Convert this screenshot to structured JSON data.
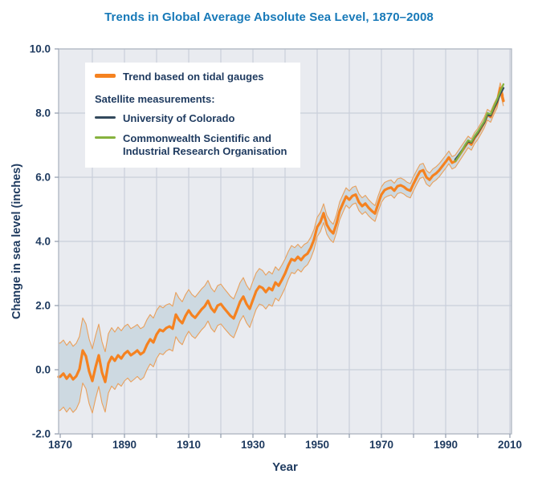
{
  "title": "Trends in Global Average Absolute Sea Level, 1870–2008",
  "colors": {
    "title_blue": "#1779b8",
    "text_navy": "#1e3a5f",
    "gauge_orange": "#f58220",
    "band_fill": "#cdd9e1",
    "band_edge": "#e9a05c",
    "colorado_navy": "#33495c",
    "csiro_green": "#86b23e",
    "plot_bg": "#e9ebf0",
    "gridline": "#c9cfda",
    "frame": "#b2b9c4",
    "tick": "#8e99ab"
  },
  "legend": {
    "tidal_label": "Trend based on tidal gauges",
    "satellite_header": "Satellite measurements:",
    "colorado_label": "University of Colorado",
    "csiro_label": "Commonwealth Scientific and Industrial Research Organisation"
  },
  "chart_data": {
    "type": "line",
    "title": "Trends in Global Average Absolute Sea Level, 1870–2008",
    "xlabel": "Year",
    "ylabel": "Change in sea level (inches)",
    "xlim": [
      1869.5,
      2010.5
    ],
    "ylim": [
      -2,
      10
    ],
    "x_ticks_labeled": [
      1870,
      1890,
      1910,
      1930,
      1950,
      1970,
      1990,
      2010
    ],
    "x_gridline_interval": 10,
    "y_ticks": [
      10,
      8,
      6,
      4,
      2,
      0,
      -2
    ],
    "grid": true,
    "legend_position": "top-left-inside",
    "series": [
      {
        "name": "Trend based on tidal gauges",
        "color": "#f58220",
        "width": 3.2,
        "x_start": 1870,
        "extend_to_left_edge": true,
        "values": [
          -0.22,
          -0.12,
          -0.28,
          -0.15,
          -0.3,
          -0.2,
          0.02,
          0.6,
          0.42,
          -0.05,
          -0.35,
          0.08,
          0.45,
          -0.08,
          -0.38,
          0.2,
          0.4,
          0.28,
          0.45,
          0.35,
          0.5,
          0.58,
          0.45,
          0.52,
          0.6,
          0.48,
          0.55,
          0.78,
          0.95,
          0.85,
          1.1,
          1.25,
          1.2,
          1.3,
          1.35,
          1.28,
          1.72,
          1.55,
          1.45,
          1.68,
          1.85,
          1.7,
          1.62,
          1.75,
          1.88,
          1.98,
          2.15,
          1.92,
          1.8,
          2.0,
          2.05,
          1.92,
          1.8,
          1.68,
          1.6,
          1.85,
          2.12,
          2.28,
          2.05,
          1.9,
          2.18,
          2.45,
          2.6,
          2.55,
          2.42,
          2.55,
          2.48,
          2.72,
          2.62,
          2.8,
          3.0,
          3.25,
          3.45,
          3.4,
          3.52,
          3.42,
          3.55,
          3.62,
          3.8,
          4.05,
          4.45,
          4.6,
          4.88,
          4.52,
          4.35,
          4.25,
          4.55,
          4.95,
          5.18,
          5.4,
          5.3,
          5.42,
          5.46,
          5.22,
          5.1,
          5.18,
          5.05,
          4.95,
          4.87,
          5.18,
          5.46,
          5.6,
          5.65,
          5.68,
          5.58,
          5.72,
          5.75,
          5.7,
          5.62,
          5.58,
          5.8,
          6.0,
          6.18,
          6.22,
          6.0,
          5.92,
          6.05,
          6.12,
          6.22,
          6.35,
          6.48,
          6.62,
          6.45,
          6.5,
          6.65,
          6.8,
          6.95,
          7.1,
          7.02,
          7.22,
          7.35,
          7.52,
          7.7,
          7.95,
          7.88,
          8.12,
          8.32,
          8.78,
          8.38
        ]
      },
      {
        "name": "University of Colorado",
        "color": "#33495c",
        "width": 2.4,
        "x_start": 1993,
        "values": [
          6.55,
          6.68,
          6.82,
          6.98,
          7.12,
          7.08,
          7.25,
          7.38,
          7.55,
          7.7,
          7.95,
          7.92,
          8.15,
          8.35,
          8.6,
          8.78
        ]
      },
      {
        "name": "Commonwealth Scientific and Industrial Research Organisation",
        "color": "#86b23e",
        "width": 2.3,
        "x_start": 1993,
        "values": [
          6.5,
          6.64,
          6.8,
          7.0,
          7.15,
          7.1,
          7.28,
          7.42,
          7.58,
          7.74,
          8.0,
          7.96,
          8.2,
          8.42,
          8.68,
          8.9
        ]
      }
    ],
    "confidence_band": {
      "applies_to": "Trend based on tidal gauges",
      "halfwidth_anchors": [
        [
          1870,
          1.05
        ],
        [
          1880,
          1.0
        ],
        [
          1890,
          0.85
        ],
        [
          1900,
          0.75
        ],
        [
          1910,
          0.65
        ],
        [
          1920,
          0.62
        ],
        [
          1930,
          0.58
        ],
        [
          1940,
          0.45
        ],
        [
          1950,
          0.3
        ],
        [
          1960,
          0.27
        ],
        [
          1970,
          0.24
        ],
        [
          1980,
          0.22
        ],
        [
          1990,
          0.2
        ],
        [
          2000,
          0.17
        ],
        [
          2008,
          0.16
        ]
      ]
    }
  }
}
